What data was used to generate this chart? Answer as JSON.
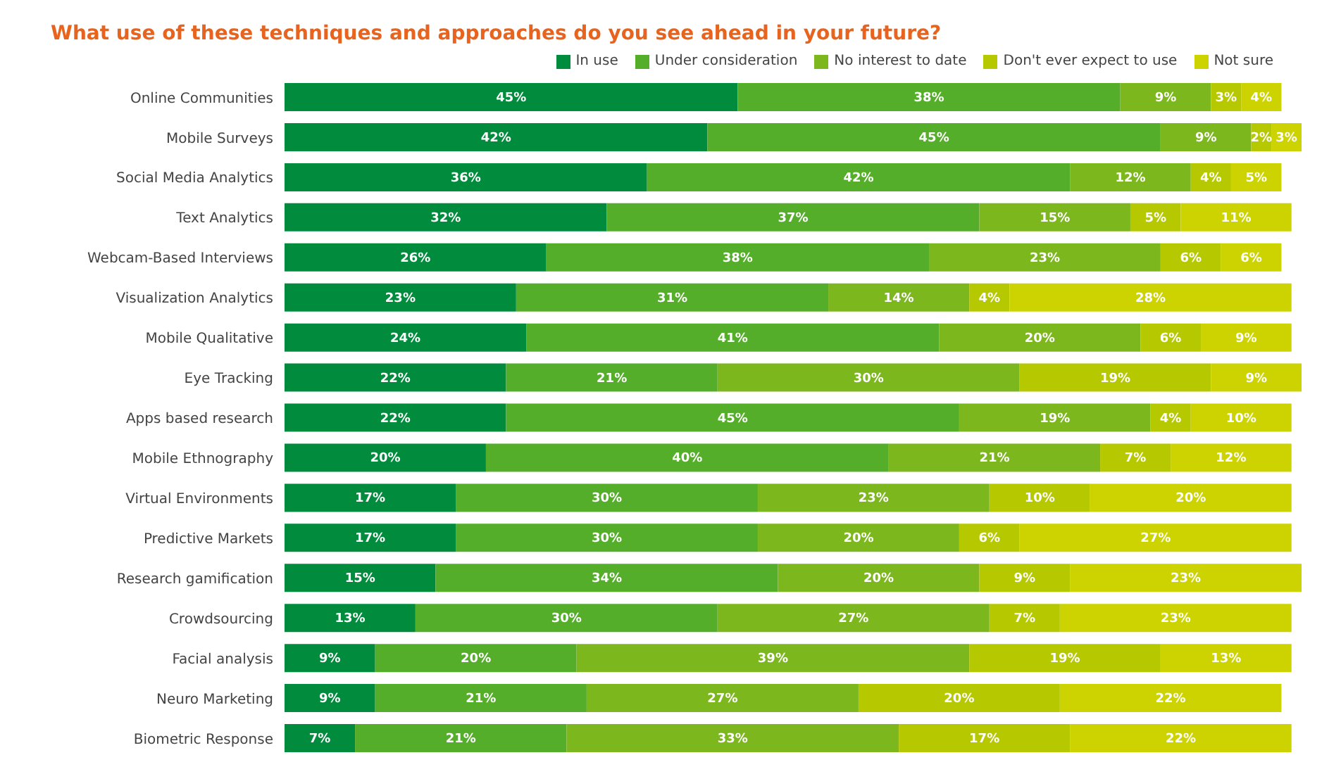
{
  "chart_data": {
    "type": "bar",
    "orientation": "horizontal",
    "stacked": true,
    "title": "What use of these techniques and approaches do you see ahead in your future?",
    "categories": [
      "Online Communities",
      "Mobile Surveys",
      "Social Media Analytics",
      "Text Analytics",
      "Webcam-Based Interviews",
      "Visualization Analytics",
      "Mobile Qualitative",
      "Eye Tracking",
      "Apps based research",
      "Mobile Ethnography",
      "Virtual Environments",
      "Predictive Markets",
      "Research gamification",
      "Crowdsourcing",
      "Facial analysis",
      "Neuro Marketing",
      "Biometric Response"
    ],
    "series": [
      {
        "name": "In use",
        "color": "#008c3c",
        "values": [
          45,
          42,
          36,
          32,
          26,
          23,
          24,
          22,
          22,
          20,
          17,
          17,
          15,
          13,
          9,
          9,
          7
        ],
        "value_labels": [
          "45%",
          "42%",
          "36%",
          "32%",
          "26%",
          "23%",
          "24%",
          "22%",
          "22%",
          "20%",
          "17%",
          "17%",
          "15%",
          "13%",
          "9%",
          "9%",
          "7%"
        ]
      },
      {
        "name": "Under consideration",
        "color": "#55ae2a",
        "values": [
          38,
          45,
          42,
          37,
          38,
          31,
          41,
          21,
          45,
          40,
          30,
          30,
          34,
          30,
          20,
          21,
          21
        ],
        "value_labels": [
          "38%",
          "45%",
          "42%",
          "37%",
          "38%",
          "31%",
          "41%",
          "21%",
          "45%",
          "40%",
          "30%",
          "30%",
          "34%",
          "30%",
          "20%",
          "21%",
          "21%"
        ]
      },
      {
        "name": "No interest to date",
        "color": "#7db71e",
        "values": [
          9,
          9,
          12,
          15,
          23,
          14,
          20,
          30,
          19,
          21,
          23,
          20,
          20,
          27,
          39,
          27,
          33
        ],
        "value_labels": [
          "9%",
          "9%",
          "12%",
          "15%",
          "23%",
          "14%",
          "20%",
          "30%",
          "19%",
          "21%",
          "23%",
          "20%",
          "20%",
          "27%",
          "39%",
          "27%",
          "33%"
        ]
      },
      {
        "name": "Don't ever expect to use",
        "color": "#b6c800",
        "values": [
          3,
          2,
          4,
          5,
          6,
          4,
          6,
          19,
          4,
          7,
          10,
          6,
          9,
          7,
          19,
          20,
          17
        ],
        "value_labels": [
          "3%",
          "2%",
          "4%",
          "5%",
          "6%",
          "4%",
          "6%",
          "19%",
          "4%",
          "7%",
          "10%",
          "6%",
          "9%",
          "7%",
          "19%",
          "20%",
          "17%"
        ]
      },
      {
        "name": "Not sure",
        "color": "#ccd300",
        "values": [
          4,
          3,
          5,
          11,
          6,
          28,
          9,
          9,
          10,
          12,
          20,
          27,
          23,
          23,
          13,
          22,
          22
        ],
        "value_labels": [
          "4%",
          "3%",
          "5%",
          "11%",
          "6%",
          "28%",
          "9%",
          "9%",
          "10%",
          "12%",
          "20%",
          "27%",
          "23%",
          "23%",
          "13%",
          "22%",
          "22%"
        ]
      }
    ],
    "legend": "top right"
  }
}
